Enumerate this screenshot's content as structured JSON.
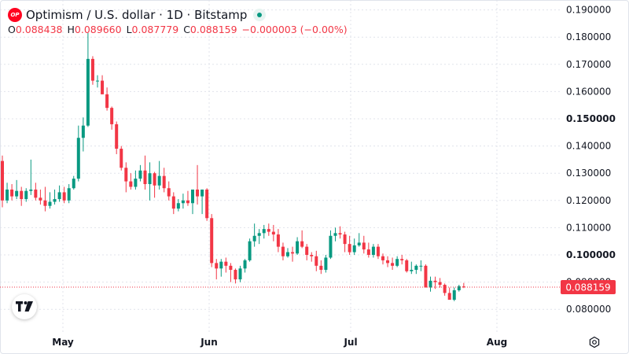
{
  "header": {
    "logo_text": "OP",
    "title": "Optimism / U.S. dollar · 1D · Bitstamp"
  },
  "ohlc": {
    "o_label": "O",
    "o_value": "0.088438",
    "h_label": "H",
    "h_value": "0.089660",
    "l_label": "L",
    "l_value": "0.087779",
    "c_label": "C",
    "c_value": "0.088159",
    "change": "−0.000003 (−0.00%)"
  },
  "price_badge": "0.088159",
  "colors": {
    "up": "#089981",
    "down": "#f23645",
    "grid": "#e0e3eb",
    "brand": "#ff0420"
  },
  "icons": {
    "tv_logo": "tradingview-logo-icon",
    "settings": "gear-icon"
  },
  "chart_data": {
    "type": "candlestick",
    "y_ticks": [
      "0.080000",
      "0.090000",
      "0.100000",
      "0.110000",
      "0.120000",
      "0.130000",
      "0.140000",
      "0.150000",
      "0.160000",
      "0.170000",
      "0.180000",
      "0.190000"
    ],
    "y_bold": [
      "0.100000",
      "0.150000"
    ],
    "x_ticks": [
      "May",
      "Jun",
      "Jul",
      "Aug"
    ],
    "ylim": [
      0.0755,
      0.1925
    ],
    "last_price": 0.088159,
    "grid": true,
    "candles": [
      [
        0.1345,
        0.1365,
        0.1175,
        0.12
      ],
      [
        0.12,
        0.1265,
        0.119,
        0.124
      ],
      [
        0.124,
        0.126,
        0.12,
        0.1215
      ],
      [
        0.1215,
        0.1275,
        0.1205,
        0.1235
      ],
      [
        0.1235,
        0.125,
        0.118,
        0.1205
      ],
      [
        0.1205,
        0.1245,
        0.1195,
        0.1235
      ],
      [
        0.1235,
        0.135,
        0.122,
        0.124
      ],
      [
        0.124,
        0.1265,
        0.12,
        0.121
      ],
      [
        0.121,
        0.124,
        0.1185,
        0.12
      ],
      [
        0.12,
        0.125,
        0.116,
        0.118
      ],
      [
        0.118,
        0.123,
        0.117,
        0.1195
      ],
      [
        0.1195,
        0.124,
        0.1185,
        0.1205
      ],
      [
        0.1205,
        0.1255,
        0.1195,
        0.123
      ],
      [
        0.123,
        0.125,
        0.119,
        0.12
      ],
      [
        0.12,
        0.126,
        0.119,
        0.1245
      ],
      [
        0.1245,
        0.129,
        0.124,
        0.128
      ],
      [
        0.128,
        0.1475,
        0.127,
        0.143
      ],
      [
        0.143,
        0.1505,
        0.138,
        0.1475
      ],
      [
        0.1475,
        0.1815,
        0.147,
        0.172
      ],
      [
        0.172,
        0.173,
        0.1625,
        0.164
      ],
      [
        0.164,
        0.166,
        0.1615,
        0.164
      ],
      [
        0.164,
        0.166,
        0.159,
        0.159
      ],
      [
        0.159,
        0.1615,
        0.153,
        0.154
      ],
      [
        0.154,
        0.1545,
        0.146,
        0.148
      ],
      [
        0.148,
        0.149,
        0.137,
        0.139
      ],
      [
        0.139,
        0.14,
        0.131,
        0.132
      ],
      [
        0.132,
        0.134,
        0.123,
        0.127
      ],
      [
        0.127,
        0.13,
        0.124,
        0.125
      ],
      [
        0.125,
        0.131,
        0.124,
        0.128
      ],
      [
        0.128,
        0.133,
        0.127,
        0.131
      ],
      [
        0.131,
        0.1365,
        0.124,
        0.126
      ],
      [
        0.126,
        0.134,
        0.12,
        0.13
      ],
      [
        0.13,
        0.1305,
        0.121,
        0.1255
      ],
      [
        0.1255,
        0.1345,
        0.124,
        0.129
      ],
      [
        0.129,
        0.132,
        0.123,
        0.1245
      ],
      [
        0.1245,
        0.127,
        0.12,
        0.1215
      ],
      [
        0.1215,
        0.123,
        0.115,
        0.117
      ],
      [
        0.117,
        0.1205,
        0.116,
        0.119
      ],
      [
        0.119,
        0.1225,
        0.117,
        0.12
      ],
      [
        0.12,
        0.1235,
        0.118,
        0.119
      ],
      [
        0.119,
        0.124,
        0.115,
        0.124
      ],
      [
        0.124,
        0.133,
        0.1185,
        0.1215
      ],
      [
        0.1215,
        0.124,
        0.115,
        0.124
      ],
      [
        0.124,
        0.1245,
        0.1125,
        0.1135
      ],
      [
        0.1135,
        0.115,
        0.0955,
        0.097
      ],
      [
        0.097,
        0.0985,
        0.091,
        0.095
      ],
      [
        0.095,
        0.0985,
        0.092,
        0.0975
      ],
      [
        0.0975,
        0.099,
        0.0935,
        0.096
      ],
      [
        0.096,
        0.097,
        0.09,
        0.0945
      ],
      [
        0.0945,
        0.095,
        0.0895,
        0.091
      ],
      [
        0.091,
        0.096,
        0.09,
        0.095
      ],
      [
        0.095,
        0.0985,
        0.0935,
        0.098
      ],
      [
        0.098,
        0.106,
        0.0975,
        0.105
      ],
      [
        0.105,
        0.1115,
        0.103,
        0.107
      ],
      [
        0.107,
        0.1095,
        0.104,
        0.108
      ],
      [
        0.108,
        0.111,
        0.106,
        0.1095
      ],
      [
        0.1095,
        0.1115,
        0.107,
        0.1085
      ],
      [
        0.1085,
        0.111,
        0.105,
        0.1075
      ],
      [
        0.1075,
        0.1095,
        0.101,
        0.103
      ],
      [
        0.103,
        0.1045,
        0.098,
        0.0995
      ],
      [
        0.0995,
        0.1025,
        0.099,
        0.101
      ],
      [
        0.101,
        0.103,
        0.0975,
        0.1005
      ],
      [
        0.1005,
        0.1065,
        0.1,
        0.105
      ],
      [
        0.105,
        0.109,
        0.1025,
        0.103
      ],
      [
        0.103,
        0.104,
        0.098,
        0.1
      ],
      [
        0.1,
        0.101,
        0.0975,
        0.0995
      ],
      [
        0.0995,
        0.1015,
        0.094,
        0.096
      ],
      [
        0.096,
        0.098,
        0.093,
        0.0945
      ],
      [
        0.0945,
        0.1,
        0.0935,
        0.099
      ],
      [
        0.099,
        0.109,
        0.0985,
        0.107
      ],
      [
        0.107,
        0.11,
        0.105,
        0.108
      ],
      [
        0.108,
        0.1105,
        0.106,
        0.1075
      ],
      [
        0.1075,
        0.1085,
        0.101,
        0.104
      ],
      [
        0.104,
        0.107,
        0.1,
        0.101
      ],
      [
        0.101,
        0.106,
        0.1,
        0.1035
      ],
      [
        0.1035,
        0.108,
        0.103,
        0.1045
      ],
      [
        0.1045,
        0.107,
        0.1005,
        0.102
      ],
      [
        0.102,
        0.1045,
        0.099,
        0.1
      ],
      [
        0.1,
        0.104,
        0.099,
        0.103
      ],
      [
        0.103,
        0.104,
        0.0985,
        0.0995
      ],
      [
        0.0995,
        0.1005,
        0.0965,
        0.098
      ],
      [
        0.098,
        0.0995,
        0.0955,
        0.097
      ],
      [
        0.097,
        0.099,
        0.0945,
        0.096
      ],
      [
        0.096,
        0.0995,
        0.0955,
        0.0985
      ],
      [
        0.0985,
        0.1,
        0.0965,
        0.098
      ],
      [
        0.098,
        0.0985,
        0.0935,
        0.094
      ],
      [
        0.094,
        0.0975,
        0.093,
        0.0945
      ],
      [
        0.0945,
        0.0965,
        0.093,
        0.096
      ],
      [
        0.096,
        0.098,
        0.094,
        0.096
      ],
      [
        0.096,
        0.0965,
        0.088,
        0.088
      ],
      [
        0.088,
        0.092,
        0.0865,
        0.0905
      ],
      [
        0.0905,
        0.092,
        0.0875,
        0.09
      ],
      [
        0.09,
        0.0915,
        0.088,
        0.089
      ],
      [
        0.089,
        0.0895,
        0.085,
        0.086
      ],
      [
        0.086,
        0.088,
        0.084,
        0.0835
      ],
      [
        0.0835,
        0.088,
        0.083,
        0.087
      ],
      [
        0.087,
        0.089,
        0.0865,
        0.0885
      ],
      [
        0.0884,
        0.0897,
        0.0878,
        0.0882
      ]
    ]
  }
}
